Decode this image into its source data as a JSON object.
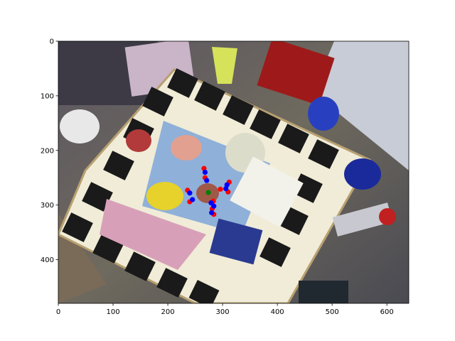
{
  "chart_data": {
    "type": "scatter",
    "title": "",
    "xlabel": "",
    "ylabel": "",
    "xlim": [
      0,
      640
    ],
    "ylim": [
      480,
      0
    ],
    "y_inverted": true,
    "grid": false,
    "background": "photo of a cluttered tabletop with a fiducial marker board, toy objects and mugs",
    "x_ticks": [
      0,
      100,
      200,
      300,
      400,
      500,
      600
    ],
    "y_ticks": [
      0,
      100,
      200,
      300,
      400
    ],
    "series": [
      {
        "color": "#ff0000",
        "marker": "circle",
        "points": [
          {
            "x": 266,
            "y": 233
          },
          {
            "x": 268,
            "y": 250
          },
          {
            "x": 236,
            "y": 273
          },
          {
            "x": 240,
            "y": 294
          },
          {
            "x": 283,
            "y": 293
          },
          {
            "x": 281,
            "y": 307
          },
          {
            "x": 284,
            "y": 317
          },
          {
            "x": 312,
            "y": 258
          },
          {
            "x": 310,
            "y": 276
          },
          {
            "x": 296,
            "y": 271
          }
        ]
      },
      {
        "color": "#0000ff",
        "marker": "circle",
        "points": [
          {
            "x": 268,
            "y": 240
          },
          {
            "x": 271,
            "y": 255
          },
          {
            "x": 240,
            "y": 278
          },
          {
            "x": 245,
            "y": 290
          },
          {
            "x": 279,
            "y": 296
          },
          {
            "x": 284,
            "y": 302
          },
          {
            "x": 280,
            "y": 314
          },
          {
            "x": 308,
            "y": 263
          },
          {
            "x": 306,
            "y": 270
          }
        ]
      },
      {
        "color": "#008000",
        "marker": "circle",
        "points": [
          {
            "x": 274,
            "y": 277
          }
        ]
      }
    ]
  }
}
